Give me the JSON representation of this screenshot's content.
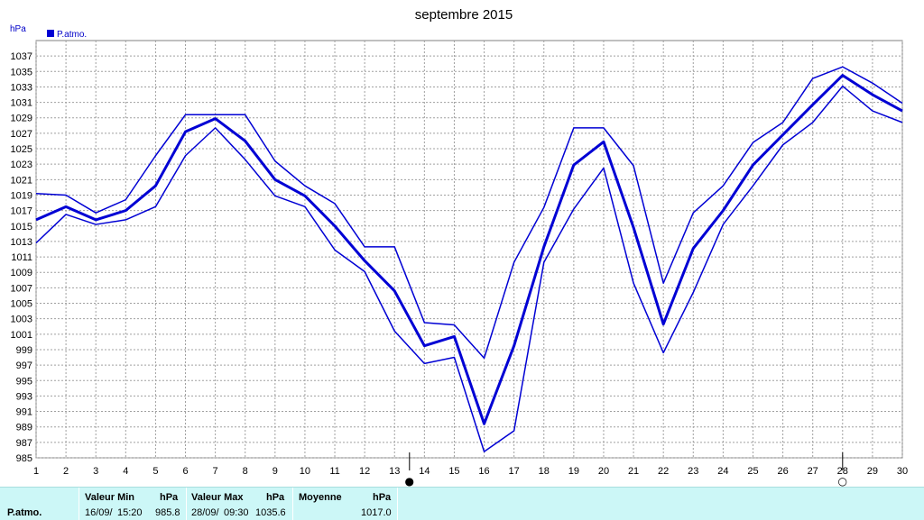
{
  "chart_data": {
    "type": "line",
    "title": "septembre 2015",
    "ylabel": "hPa",
    "ylim": [
      985,
      1039
    ],
    "yticks": [
      985,
      987,
      989,
      991,
      993,
      995,
      997,
      999,
      1001,
      1003,
      1005,
      1007,
      1009,
      1011,
      1013,
      1015,
      1017,
      1019,
      1021,
      1023,
      1025,
      1027,
      1029,
      1031,
      1033,
      1035,
      1037
    ],
    "x": [
      1,
      2,
      3,
      4,
      5,
      6,
      7,
      8,
      9,
      10,
      11,
      12,
      13,
      14,
      15,
      16,
      17,
      18,
      19,
      20,
      21,
      22,
      23,
      24,
      25,
      26,
      27,
      28,
      29,
      30
    ],
    "legend": [
      "P.atmo."
    ],
    "legend_position": "top-left",
    "grid": true,
    "series": [
      {
        "name": "P.atmo.",
        "role": "max",
        "values": [
          1019.2,
          1019.0,
          1016.7,
          1018.4,
          1024.1,
          1029.4,
          1029.4,
          1029.4,
          1023.4,
          1020.2,
          1017.9,
          1012.3,
          1012.3,
          1002.5,
          1002.2,
          997.9,
          1010.3,
          1017.4,
          1027.7,
          1027.7,
          1022.8,
          1007.6,
          1016.7,
          1020.2,
          1025.8,
          1028.4,
          1034.1,
          1035.6,
          1033.5,
          1030.9
        ]
      },
      {
        "name": "P.atmo.",
        "role": "mean",
        "values": [
          1015.8,
          1017.5,
          1015.8,
          1017.0,
          1020.2,
          1027.2,
          1028.9,
          1026.0,
          1021.0,
          1018.9,
          1015.0,
          1010.5,
          1006.6,
          999.5,
          1000.7,
          989.4,
          999.5,
          1012.3,
          1022.9,
          1025.9,
          1014.8,
          1002.3,
          1012.1,
          1017.0,
          1022.9,
          1026.8,
          1030.7,
          1034.5,
          1032.0,
          1029.9
        ]
      },
      {
        "name": "P.atmo.",
        "role": "min",
        "values": [
          1012.8,
          1016.5,
          1015.2,
          1015.8,
          1017.5,
          1024.1,
          1027.7,
          1023.6,
          1018.9,
          1017.5,
          1011.9,
          1009.1,
          1001.4,
          997.2,
          998.0,
          985.8,
          988.5,
          1010.3,
          1017.2,
          1022.5,
          1007.6,
          998.6,
          1006.4,
          1015.2,
          1020.2,
          1025.5,
          1028.4,
          1033.1,
          1029.9,
          1028.4
        ]
      }
    ],
    "markers": [
      {
        "x": 13.5,
        "symbol": "●"
      },
      {
        "x": 28,
        "symbol": "○"
      }
    ]
  },
  "summary": {
    "row_label": "P.atmo.",
    "min": {
      "header": "Valeur Min",
      "unit": "hPa",
      "date": "16/09/",
      "time": "15:20",
      "value": "985.8"
    },
    "max": {
      "header": "Valeur Max",
      "unit": "hPa",
      "date": "28/09/",
      "time": "09:30",
      "value": "1035.6"
    },
    "mean": {
      "header": "Moyenne",
      "unit": "hPa",
      "value": "1017.0"
    }
  },
  "colors": {
    "line": "#0000d4",
    "grid": "#a0a0a0",
    "summary_bg": "#ccf7f7"
  }
}
